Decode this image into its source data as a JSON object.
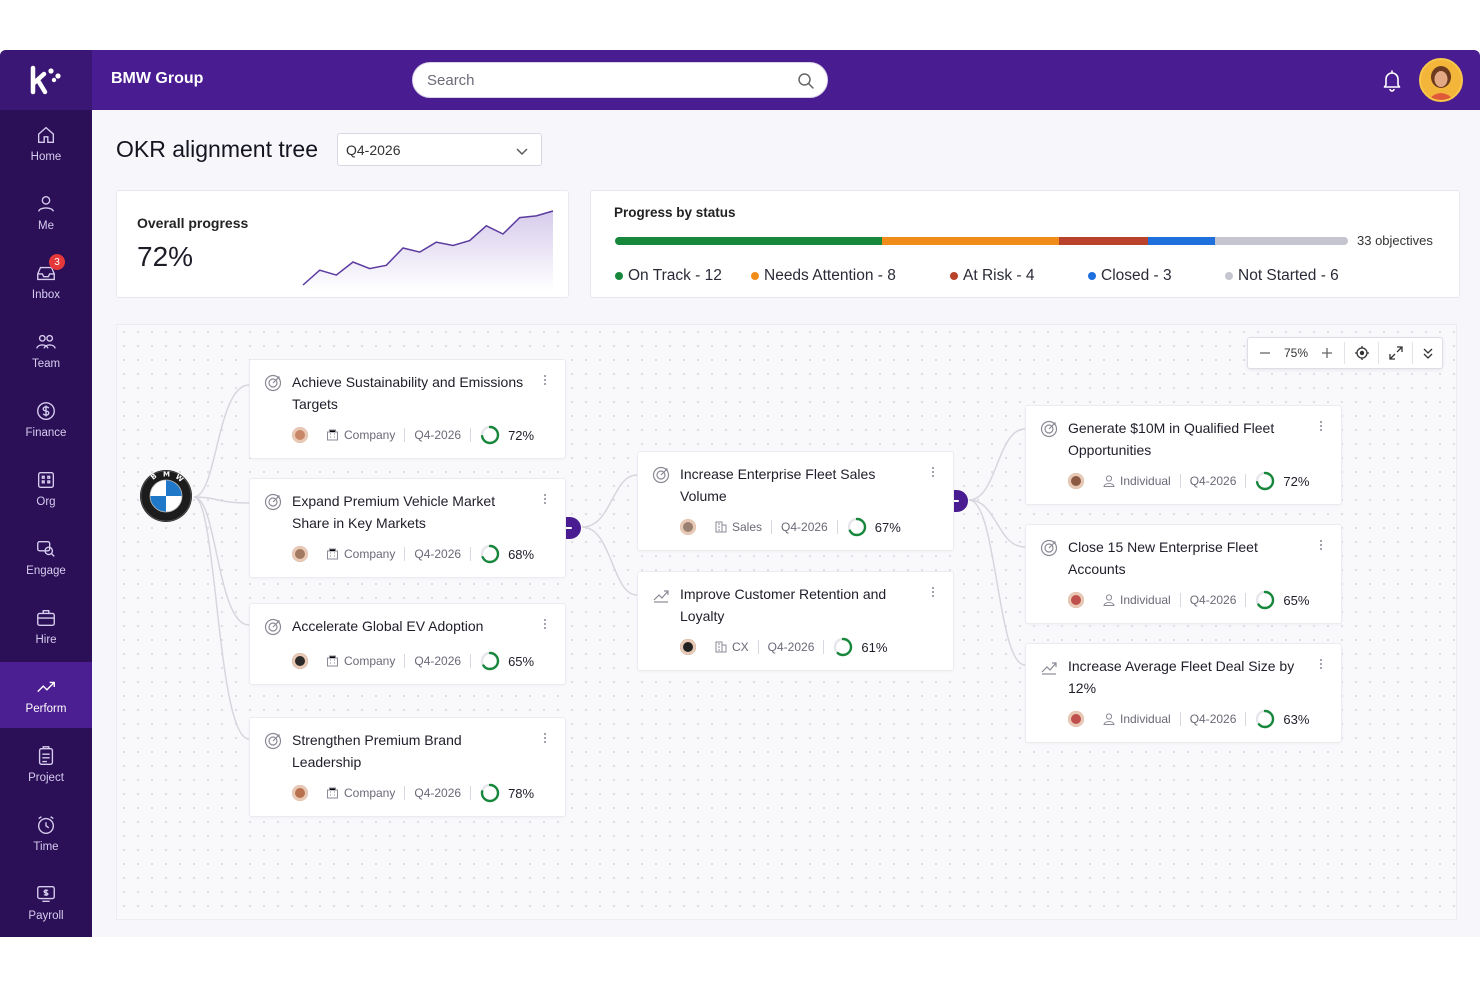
{
  "sidebar": {
    "logo": "k",
    "items": [
      {
        "label": "Home",
        "icon": "home-icon"
      },
      {
        "label": "Me",
        "icon": "user-icon"
      },
      {
        "label": "Inbox",
        "icon": "inbox-icon",
        "badge": "3"
      },
      {
        "label": "Team",
        "icon": "team-icon"
      },
      {
        "label": "Finance",
        "icon": "dollar-icon"
      },
      {
        "label": "Org",
        "icon": "org-icon"
      },
      {
        "label": "Engage",
        "icon": "engage-icon"
      },
      {
        "label": "Hire",
        "icon": "briefcase-icon"
      },
      {
        "label": "Perform",
        "icon": "trend-icon",
        "active": true
      },
      {
        "label": "Project",
        "icon": "clipboard-icon"
      },
      {
        "label": "Time",
        "icon": "clock-icon"
      },
      {
        "label": "Payroll",
        "icon": "payroll-icon"
      }
    ]
  },
  "header": {
    "org": "BMW Group",
    "search_placeholder": "Search"
  },
  "page": {
    "title": "OKR alignment tree",
    "quarter": "Q4-2026"
  },
  "overall": {
    "label": "Overall progress",
    "value": "72%",
    "trend": [
      10,
      28,
      22,
      38,
      30,
      34,
      55,
      50,
      62,
      58,
      64,
      82,
      72,
      92,
      94,
      100
    ]
  },
  "status": {
    "title": "Progress by status",
    "total": "33 objectives",
    "segments": [
      {
        "label": "On Track - 12",
        "count": 12,
        "color": "#17873b"
      },
      {
        "label": "Needs Attention - 8",
        "count": 8,
        "color": "#f08c1a"
      },
      {
        "label": "At Risk - 4",
        "count": 4,
        "color": "#b8432a"
      },
      {
        "label": "Closed - 3",
        "count": 3,
        "color": "#1f6fdc"
      },
      {
        "label": "Not Started - 6",
        "count": 6,
        "color": "#c4c5cf"
      }
    ]
  },
  "zoom": {
    "level": "75%"
  },
  "okrs": [
    {
      "title": "Achieve Sustainability and Emissions Targets",
      "type": "Company",
      "quarter": "Q4-2026",
      "progress": "72%",
      "value": 72,
      "icon": "target-icon",
      "type_icon": "building-icon",
      "avatar_color": "#c9876a"
    },
    {
      "title": "Expand Premium Vehicle Market Share in Key Markets",
      "type": "Company",
      "quarter": "Q4-2026",
      "progress": "68%",
      "value": 68,
      "icon": "target-icon",
      "type_icon": "building-icon",
      "avatar_color": "#a27a62"
    },
    {
      "title": "Accelerate Global EV Adoption",
      "type": "Company",
      "quarter": "Q4-2026",
      "progress": "65%",
      "value": 65,
      "icon": "target-icon",
      "type_icon": "building-icon",
      "avatar_color": "#2b2b2b"
    },
    {
      "title": "Strengthen Premium Brand Leadership",
      "type": "Company",
      "quarter": "Q4-2026",
      "progress": "78%",
      "value": 78,
      "icon": "target-icon",
      "type_icon": "building-icon",
      "avatar_color": "#b9704f"
    },
    {
      "title": "Increase Enterprise Fleet Sales Volume",
      "type": "Sales",
      "quarter": "Q4-2026",
      "progress": "67%",
      "value": 67,
      "icon": "target-icon",
      "type_icon": "office-icon",
      "avatar_color": "#9a8070"
    },
    {
      "title": "Improve Customer Retention and Loyalty",
      "type": "CX",
      "quarter": "Q4-2026",
      "progress": "61%",
      "value": 61,
      "icon": "trend-icon",
      "type_icon": "office-icon",
      "avatar_color": "#222222"
    },
    {
      "title": "Generate $10M in Qualified Fleet Opportunities",
      "type": "Individual",
      "quarter": "Q4-2026",
      "progress": "72%",
      "value": 72,
      "icon": "target-icon",
      "type_icon": "person-icon",
      "avatar_color": "#8c5a42"
    },
    {
      "title": "Close 15 New Enterprise Fleet Accounts",
      "type": "Individual",
      "quarter": "Q4-2026",
      "progress": "65%",
      "value": 65,
      "icon": "target-icon",
      "type_icon": "person-icon",
      "avatar_color": "#c0504d"
    },
    {
      "title": "Increase Average Fleet Deal Size by 12%",
      "type": "Individual",
      "quarter": "Q4-2026",
      "progress": "63%",
      "value": 63,
      "icon": "trend-icon",
      "type_icon": "person-icon",
      "avatar_color": "#c0504d"
    }
  ]
}
